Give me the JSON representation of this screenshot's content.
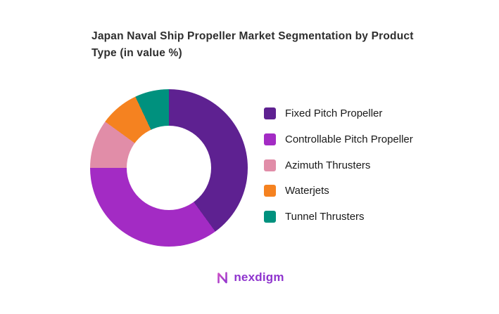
{
  "title": "Japan Naval Ship Propeller Market Segmentation by Product Type (in value %)",
  "chart_data": {
    "type": "pie",
    "subtype": "donut",
    "title": "Japan Naval Ship Propeller Market Segmentation by Product Type (in value %)",
    "labels": [
      "Fixed Pitch Propeller",
      "Controllable Pitch Propeller",
      "Azimuth Thrusters",
      "Waterjets",
      "Tunnel Thrusters"
    ],
    "values": [
      40,
      35,
      10,
      8,
      7
    ],
    "colors": [
      "#5E2191",
      "#A32BC4",
      "#E18DA8",
      "#F58220",
      "#00917E"
    ],
    "start_angle_deg": 0,
    "direction": "clockwise",
    "inner_radius_ratio": 0.54,
    "legend_position": "right",
    "data_labels_shown": false
  },
  "logo": {
    "text": "nexdigm",
    "icon": "nexdigm-n-icon",
    "text_color": "#8F35CE",
    "icon_gradient": [
      "#E75BC3",
      "#7C2BD1"
    ]
  }
}
